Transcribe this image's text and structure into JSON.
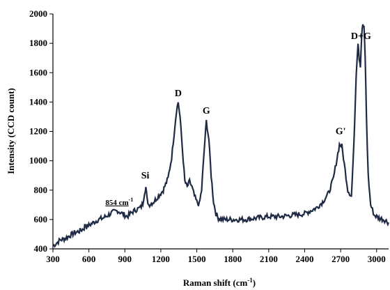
{
  "chart_data": {
    "type": "line",
    "xlabel": "Raman shift (cm",
    "xlabel_sup": "-1",
    "xlabel_end": ")",
    "ylabel": "Intensity (CCD count)",
    "xlim": [
      300,
      3100
    ],
    "ylim": [
      400,
      2000
    ],
    "xticks": [
      300,
      600,
      900,
      1200,
      1500,
      1800,
      2100,
      2400,
      2700,
      3000
    ],
    "yticks": [
      400,
      600,
      800,
      1000,
      1200,
      1400,
      1600,
      1800,
      2000
    ],
    "grid": false,
    "line_color": "#1f2a44",
    "annotations": [
      {
        "text": "854 cm",
        "sup": "-1",
        "x": 854,
        "y": 700,
        "underline": true
      },
      {
        "text": "Si",
        "x": 1070,
        "y": 880
      },
      {
        "text": "D",
        "x": 1345,
        "y": 1440
      },
      {
        "text": "G",
        "x": 1580,
        "y": 1320
      },
      {
        "text": "G'",
        "x": 2700,
        "y": 1180
      },
      {
        "text": "D+G",
        "x": 2870,
        "y": 1830
      }
    ],
    "series": [
      {
        "x": [
          300,
          330,
          360,
          400,
          440,
          480,
          520,
          560,
          570,
          580,
          600,
          640,
          680,
          720,
          760,
          800,
          840,
          880,
          920,
          960,
          1000,
          1030,
          1050,
          1065,
          1075,
          1085,
          1100,
          1140,
          1180,
          1220,
          1260,
          1290,
          1310,
          1330,
          1345,
          1360,
          1380,
          1400,
          1420,
          1440,
          1460,
          1480,
          1500,
          1520,
          1540,
          1560,
          1580,
          1600,
          1620,
          1640,
          1660,
          1680,
          1720,
          1800,
          1900,
          2000,
          2100,
          2200,
          2300,
          2400,
          2450,
          2500,
          2550,
          2600,
          2640,
          2670,
          2690,
          2710,
          2730,
          2760,
          2790,
          2810,
          2830,
          2845,
          2855,
          2865,
          2875,
          2885,
          2895,
          2905,
          2915,
          2930,
          2950,
          2980,
          3020,
          3060,
          3100
        ],
        "y": [
          420,
          440,
          460,
          470,
          490,
          510,
          520,
          540,
          570,
          550,
          560,
          580,
          600,
          610,
          630,
          650,
          660,
          640,
          620,
          650,
          670,
          680,
          710,
          790,
          820,
          740,
          700,
          720,
          760,
          800,
          880,
          1020,
          1180,
          1340,
          1400,
          1300,
          1080,
          860,
          820,
          860,
          820,
          760,
          720,
          700,
          800,
          1050,
          1270,
          1150,
          900,
          720,
          640,
          610,
          600,
          600,
          600,
          610,
          620,
          620,
          630,
          640,
          660,
          680,
          720,
          780,
          880,
          1020,
          1110,
          1100,
          980,
          800,
          760,
          1100,
          1600,
          1810,
          1700,
          1650,
          1850,
          1930,
          1900,
          1700,
          1300,
          900,
          700,
          630,
          610,
          600,
          580
        ]
      }
    ]
  }
}
